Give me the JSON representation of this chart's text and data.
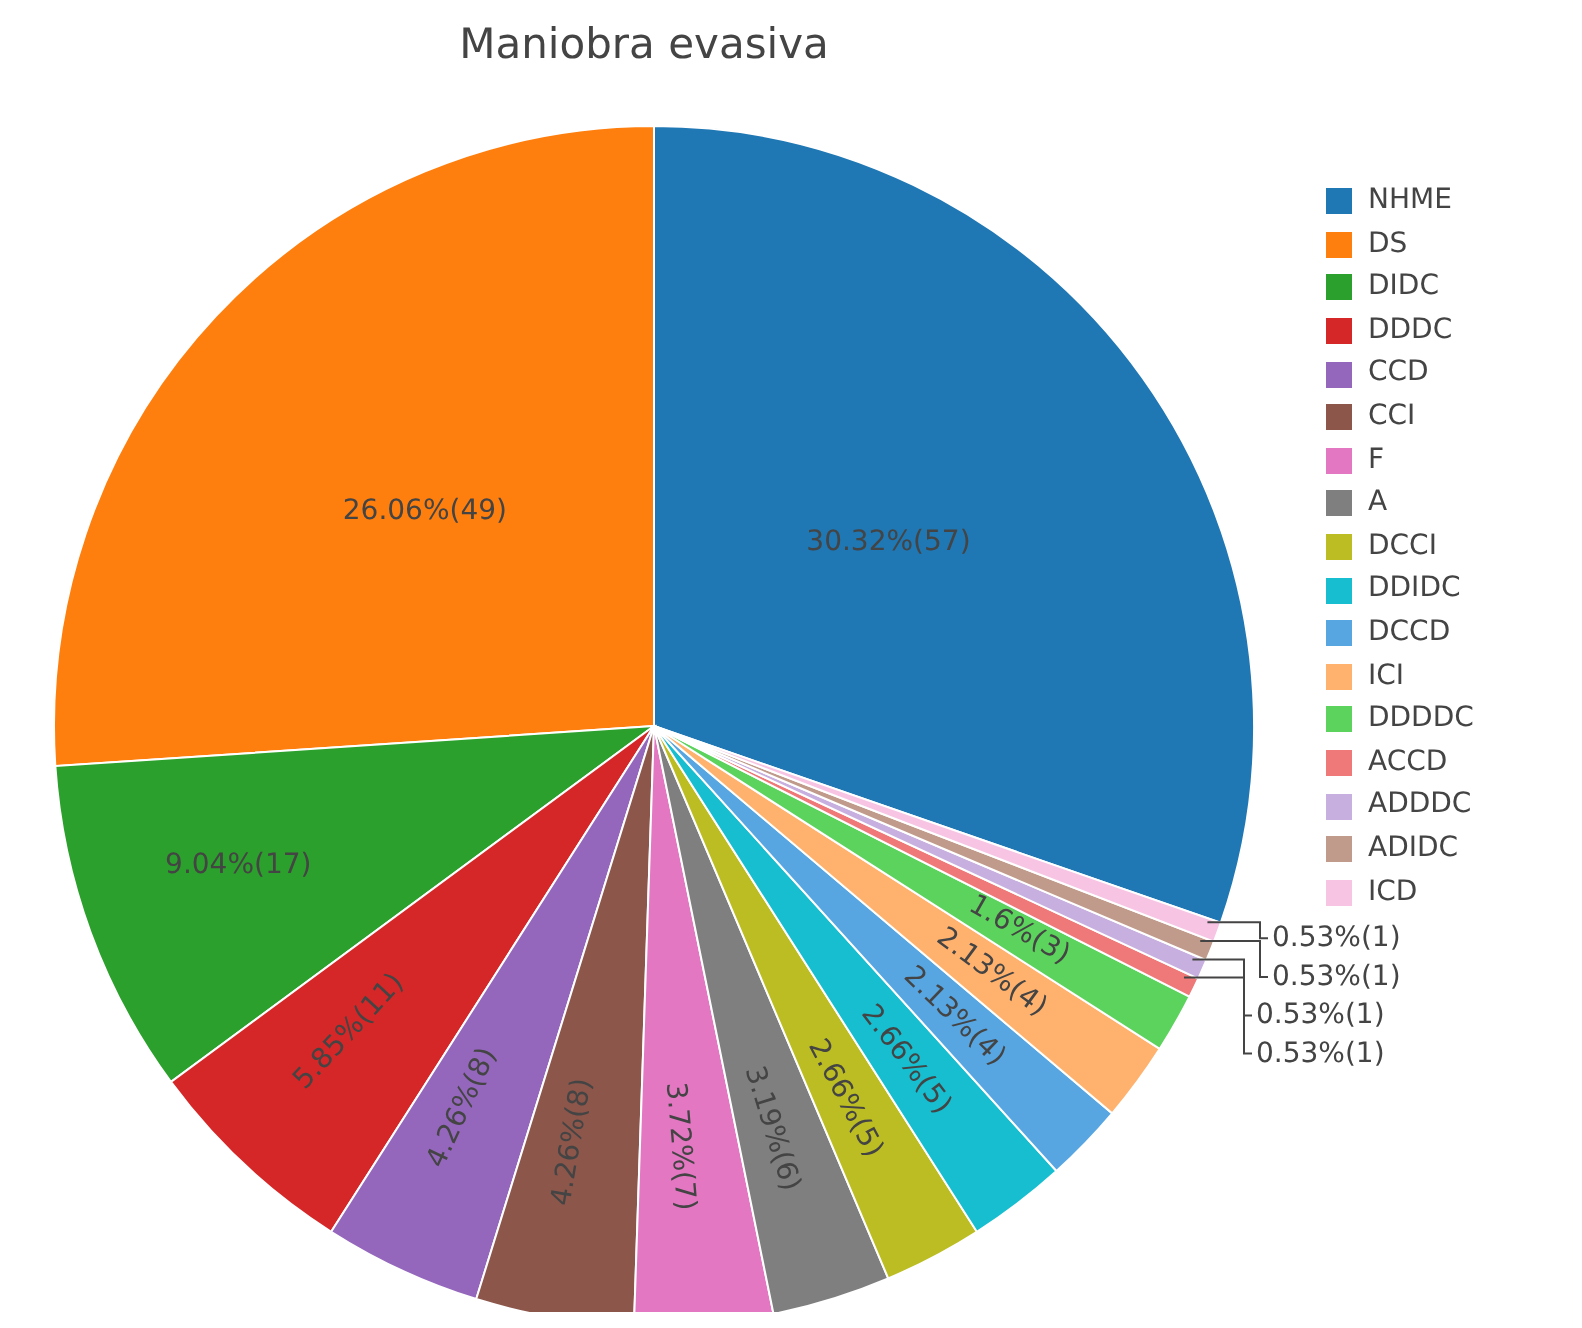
{
  "chart_data": {
    "type": "pie",
    "title": "Maniobra evasiva",
    "categories": [
      "NHME",
      "DS",
      "DIDC",
      "DDDC",
      "CCD",
      "CCI",
      "F",
      "A",
      "DCCI",
      "DDIDC",
      "DCCD",
      "ICI",
      "DDDDC",
      "ACCD",
      "ADDDC",
      "ADIDC",
      "ICD"
    ],
    "values": [
      57,
      49,
      17,
      11,
      8,
      8,
      7,
      6,
      5,
      5,
      4,
      4,
      3,
      1,
      1,
      1,
      1
    ],
    "value_labels": [
      "30.32%(57)",
      "26.06%(49)",
      "9.04%(17)",
      "5.85%(11)",
      "4.26%(8)",
      "4.26%(8)",
      "3.72%(7)",
      "3.19%(6)",
      "2.66%(5)",
      "2.66%(5)",
      "2.13%(4)",
      "2.13%(4)",
      "1.6%(3)",
      "0.53%(1)",
      "0.53%(1)",
      "0.53%(1)",
      "0.53%(1)"
    ],
    "colors": [
      "#1f77b4",
      "#ff7f0e",
      "#2ca02c",
      "#d62728",
      "#9467bd",
      "#8c564b",
      "#e377c2",
      "#7f7f7f",
      "#bcbd22",
      "#17becf",
      "#57a6e2",
      "#ffb26e",
      "#5cd35c",
      "#ef7878",
      "#c7b0e0",
      "#c09a8a",
      "#f7c4e4"
    ],
    "legend": "top right"
  }
}
